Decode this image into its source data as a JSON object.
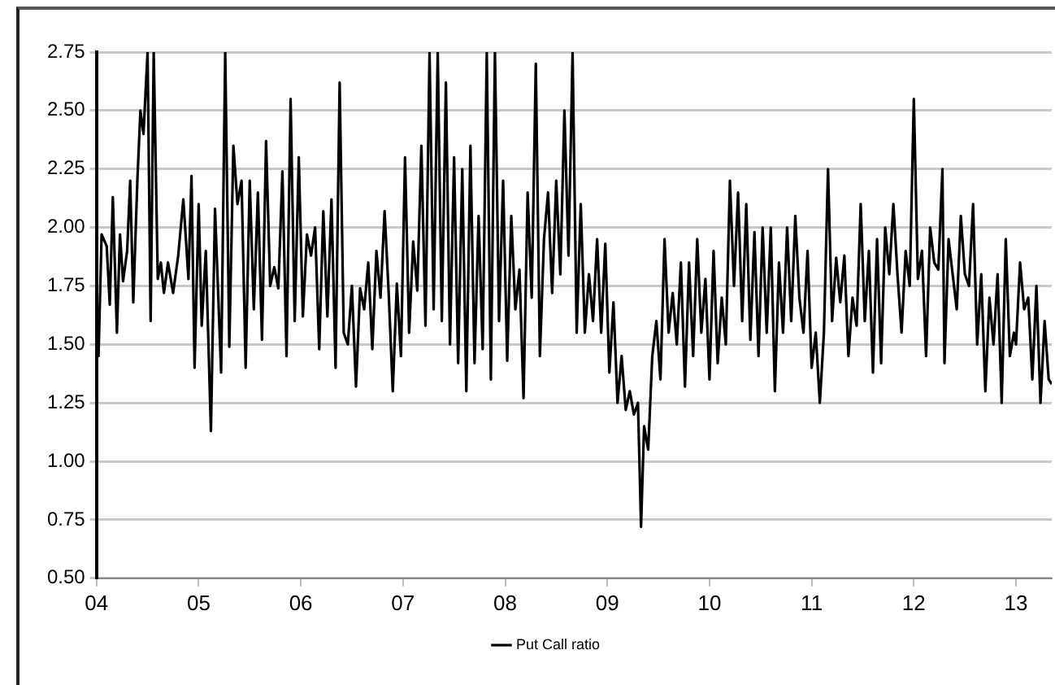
{
  "chart_data": {
    "type": "line",
    "xlim": [
      2004,
      2013.35
    ],
    "xticks": [
      {
        "value": 2004,
        "label": "04"
      },
      {
        "value": 2005,
        "label": "05"
      },
      {
        "value": 2006,
        "label": "06"
      },
      {
        "value": 2007,
        "label": "07"
      },
      {
        "value": 2008,
        "label": "08"
      },
      {
        "value": 2009,
        "label": "09"
      },
      {
        "value": 2010,
        "label": "10"
      },
      {
        "value": 2011,
        "label": "11"
      },
      {
        "value": 2012,
        "label": "12"
      },
      {
        "value": 2013,
        "label": "13"
      }
    ],
    "ylim": [
      0.5,
      2.75
    ],
    "yticks": [
      {
        "value": 0.5,
        "label": "0.50"
      },
      {
        "value": 0.75,
        "label": "0.75"
      },
      {
        "value": 1,
        "label": "1.00"
      },
      {
        "value": 1.25,
        "label": "1.25"
      },
      {
        "value": 1.5,
        "label": "1.50"
      },
      {
        "value": 1.75,
        "label": "1.75"
      },
      {
        "value": 2,
        "label": "2.00"
      },
      {
        "value": 2.25,
        "label": "2.25"
      },
      {
        "value": 2.5,
        "label": "2.50"
      },
      {
        "value": 2.75,
        "label": "2.75"
      }
    ],
    "grid": "y",
    "legend": "bottom",
    "marker": "none",
    "line_style": "solid",
    "x": [
      2004,
      2004.02,
      2004.05,
      2004.1,
      2004.13,
      2004.16,
      2004.2,
      2004.23,
      2004.26,
      2004.3,
      2004.33,
      2004.36,
      2004.4,
      2004.43,
      2004.46,
      2004.5,
      2004.53,
      2004.56,
      2004.6,
      2004.63,
      2004.66,
      2004.7,
      2004.75,
      2004.8,
      2004.85,
      2004.9,
      2004.93,
      2004.96,
      2005,
      2005.03,
      2005.07,
      2005.12,
      2005.16,
      2005.22,
      2005.26,
      2005.3,
      2005.34,
      2005.38,
      2005.42,
      2005.46,
      2005.5,
      2005.54,
      2005.58,
      2005.62,
      2005.66,
      2005.7,
      2005.74,
      2005.78,
      2005.82,
      2005.86,
      2005.9,
      2005.94,
      2005.98,
      2006.02,
      2006.06,
      2006.1,
      2006.14,
      2006.18,
      2006.22,
      2006.26,
      2006.3,
      2006.34,
      2006.38,
      2006.42,
      2006.46,
      2006.5,
      2006.54,
      2006.58,
      2006.62,
      2006.66,
      2006.7,
      2006.74,
      2006.78,
      2006.82,
      2006.86,
      2006.9,
      2006.94,
      2006.98,
      2007.02,
      2007.06,
      2007.1,
      2007.14,
      2007.18,
      2007.22,
      2007.26,
      2007.3,
      2007.34,
      2007.38,
      2007.42,
      2007.46,
      2007.5,
      2007.54,
      2007.58,
      2007.62,
      2007.66,
      2007.7,
      2007.74,
      2007.78,
      2007.82,
      2007.86,
      2007.9,
      2007.94,
      2007.98,
      2008.02,
      2008.06,
      2008.1,
      2008.14,
      2008.18,
      2008.22,
      2008.26,
      2008.3,
      2008.34,
      2008.38,
      2008.42,
      2008.46,
      2008.5,
      2008.54,
      2008.58,
      2008.62,
      2008.66,
      2008.7,
      2008.74,
      2008.78,
      2008.82,
      2008.86,
      2008.9,
      2008.94,
      2008.98,
      2009.02,
      2009.06,
      2009.1,
      2009.14,
      2009.18,
      2009.22,
      2009.26,
      2009.3,
      2009.33,
      2009.36,
      2009.4,
      2009.44,
      2009.48,
      2009.52,
      2009.56,
      2009.6,
      2009.64,
      2009.68,
      2009.72,
      2009.76,
      2009.8,
      2009.84,
      2009.88,
      2009.92,
      2009.96,
      2010,
      2010.04,
      2010.08,
      2010.12,
      2010.16,
      2010.2,
      2010.24,
      2010.28,
      2010.32,
      2010.36,
      2010.4,
      2010.44,
      2010.48,
      2010.52,
      2010.56,
      2010.6,
      2010.64,
      2010.68,
      2010.72,
      2010.76,
      2010.8,
      2010.84,
      2010.88,
      2010.92,
      2010.96,
      2011,
      2011.04,
      2011.08,
      2011.12,
      2011.16,
      2011.2,
      2011.24,
      2011.28,
      2011.32,
      2011.36,
      2011.4,
      2011.44,
      2011.48,
      2011.52,
      2011.56,
      2011.6,
      2011.64,
      2011.68,
      2011.72,
      2011.76,
      2011.8,
      2011.84,
      2011.88,
      2011.92,
      2011.96,
      2012,
      2012.04,
      2012.08,
      2012.12,
      2012.16,
      2012.2,
      2012.24,
      2012.28,
      2012.3,
      2012.34,
      2012.38,
      2012.42,
      2012.46,
      2012.5,
      2012.54,
      2012.58,
      2012.62,
      2012.66,
      2012.7,
      2012.74,
      2012.78,
      2012.82,
      2012.86,
      2012.9,
      2012.94,
      2012.98,
      2013,
      2013.04,
      2013.08,
      2013.12,
      2013.16,
      2013.2,
      2013.24,
      2013.28,
      2013.32,
      2013.35
    ],
    "series": [
      {
        "name": "Put Call ratio",
        "color": "#000000",
        "values": [
          1.75,
          1.45,
          1.97,
          1.92,
          1.67,
          2.13,
          1.55,
          1.97,
          1.77,
          1.9,
          2.2,
          1.68,
          2.2,
          2.5,
          2.4,
          2.75,
          1.6,
          2.75,
          1.78,
          1.85,
          1.72,
          1.85,
          1.72,
          1.88,
          2.12,
          1.78,
          2.22,
          1.4,
          2.1,
          1.58,
          1.9,
          1.13,
          2.08,
          1.38,
          2.75,
          1.49,
          2.35,
          2.1,
          2.2,
          1.4,
          2.2,
          1.65,
          2.15,
          1.52,
          2.37,
          1.75,
          1.83,
          1.74,
          2.24,
          1.45,
          2.55,
          1.6,
          2.3,
          1.62,
          1.97,
          1.88,
          2,
          1.48,
          2.07,
          1.62,
          2.12,
          1.4,
          2.62,
          1.55,
          1.5,
          1.75,
          1.32,
          1.74,
          1.65,
          1.85,
          1.48,
          1.9,
          1.7,
          2.07,
          1.72,
          1.3,
          1.76,
          1.45,
          2.3,
          1.55,
          1.94,
          1.73,
          2.35,
          1.58,
          2.75,
          1.65,
          2.75,
          1.6,
          2.62,
          1.5,
          2.3,
          1.42,
          2.25,
          1.3,
          2.35,
          1.42,
          2.05,
          1.48,
          2.75,
          1.35,
          2.75,
          1.6,
          2.2,
          1.43,
          2.05,
          1.65,
          1.82,
          1.27,
          2.15,
          1.7,
          2.7,
          1.45,
          1.95,
          2.15,
          1.72,
          2.2,
          1.8,
          2.5,
          1.88,
          2.75,
          1.55,
          2.1,
          1.55,
          1.8,
          1.6,
          1.95,
          1.55,
          1.93,
          1.38,
          1.68,
          1.25,
          1.45,
          1.22,
          1.3,
          1.2,
          1.25,
          0.72,
          1.15,
          1.05,
          1.45,
          1.6,
          1.35,
          1.95,
          1.55,
          1.72,
          1.5,
          1.85,
          1.32,
          1.85,
          1.45,
          1.95,
          1.55,
          1.78,
          1.35,
          1.9,
          1.42,
          1.7,
          1.5,
          2.2,
          1.75,
          2.15,
          1.6,
          2.1,
          1.52,
          1.98,
          1.45,
          2,
          1.55,
          2,
          1.3,
          1.85,
          1.55,
          2,
          1.6,
          2.05,
          1.7,
          1.55,
          1.9,
          1.4,
          1.55,
          1.25,
          1.55,
          2.25,
          1.6,
          1.87,
          1.68,
          1.88,
          1.45,
          1.7,
          1.58,
          2.1,
          1.6,
          1.9,
          1.38,
          1.95,
          1.42,
          2,
          1.8,
          2.1,
          1.8,
          1.55,
          1.9,
          1.75,
          2.55,
          1.78,
          1.9,
          1.45,
          2,
          1.85,
          1.82,
          2.25,
          1.42,
          1.95,
          1.8,
          1.65,
          2.05,
          1.8,
          1.75,
          2.1,
          1.5,
          1.8,
          1.3,
          1.7,
          1.5,
          1.8,
          1.25,
          1.95,
          1.45,
          1.55,
          1.5,
          1.85,
          1.65,
          1.7,
          1.35,
          1.75,
          1.25,
          1.6,
          1.35,
          1.33
        ]
      }
    ]
  }
}
